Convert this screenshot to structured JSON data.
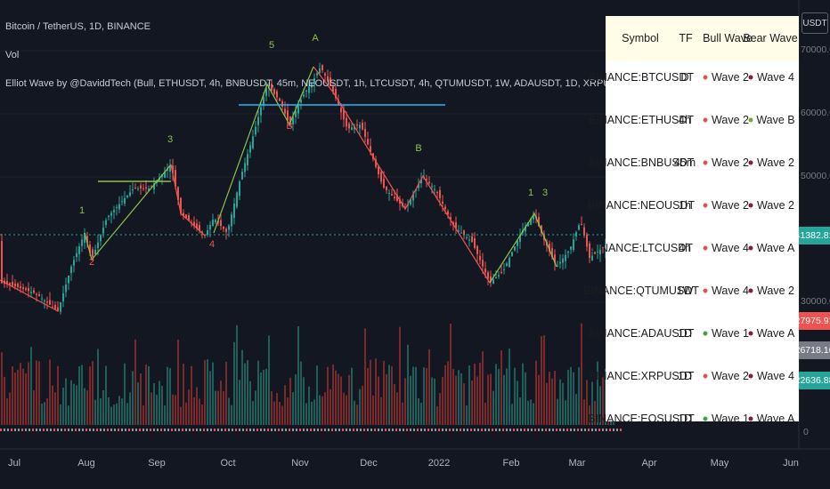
{
  "header": {
    "symbol_line": "Bitcoin / TetherUS, 1D, BINANCE",
    "volume_label": "Vol",
    "indicator_line": "Elliot Wave by @DaviddTech (Bull, ETHUSDT, 4h, BNBUSDT, 45m, NEOUSDT, 1h, LTCUSDT, 4h, QTUMUSDT, 1W, ADAUSDT, 1D, XRPUSDT, 1D, EOSUSDT, 1D, IOTAUSDT, 1D, XLMUSDT, 1D, ONTUSDT, 1D, TRXUSDT, 1D, ETCUSDT, 1D)"
  },
  "price_axis": {
    "currency_button": "USDT",
    "ticks": [
      "70000.00",
      "60000.00",
      "50000.00",
      "30000.00",
      "0"
    ],
    "markers": [
      {
        "value": "41382.81",
        "color": "#26a69a",
        "kind": "last-price"
      },
      {
        "value": "27975.91",
        "color": "#ef5350",
        "kind": "low"
      },
      {
        "value": "26718.16",
        "color": "#787b86",
        "kind": "mid"
      },
      {
        "value": "22636.88",
        "color": "#26a69a",
        "kind": "volume"
      }
    ]
  },
  "time_axis": [
    "Jul",
    "Aug",
    "Sep",
    "Oct",
    "Nov",
    "Dec",
    "2022",
    "Feb",
    "Mar",
    "Apr",
    "May",
    "Jun"
  ],
  "wave_labels": {
    "aug_1": "1",
    "aug_2": "2",
    "sep_3": "3",
    "oct_4": "4",
    "oct_5": "5",
    "nov_A": "A",
    "nov_B": "B",
    "dec_B": "B",
    "feb_1": "1",
    "feb_3": "3"
  },
  "table": {
    "headers": {
      "symbol": "Symbol",
      "tf": "TF",
      "bull": "Bull Wave",
      "bear": "Bear Wave"
    },
    "rows": [
      {
        "symbol": "BINANCE:BTCUSDT",
        "tf": "D",
        "bull_color": "#e05252",
        "bull": "Wave 2",
        "bear_color": "#7b1f3a",
        "bear": "Wave 4"
      },
      {
        "symbol": "BINANCE:ETHUSDT",
        "tf": "4h",
        "bull_color": "#e05252",
        "bull": "Wave 2",
        "bear_color": "#7da52d",
        "bear": "Wave B"
      },
      {
        "symbol": "BINANCE:BNBUSDT",
        "tf": "45m",
        "bull_color": "#e05252",
        "bull": "Wave 2",
        "bear_color": "#7b1f3a",
        "bear": "Wave 2"
      },
      {
        "symbol": "BINANCE:NEOUSDT",
        "tf": "1h",
        "bull_color": "#e05252",
        "bull": "Wave 2",
        "bear_color": "#7b1f3a",
        "bear": "Wave 2"
      },
      {
        "symbol": "BINANCE:LTCUSDT",
        "tf": "4h",
        "bull_color": "#e05252",
        "bull": "Wave 4",
        "bear_color": "#7b1f3a",
        "bear": "Wave A"
      },
      {
        "symbol": "BINANCE:QTUMUSDT",
        "tf": "1W",
        "bull_color": "#e05252",
        "bull": "Wave 4",
        "bear_color": "#7b1f3a",
        "bear": "Wave 2"
      },
      {
        "symbol": "BINANCE:ADAUSDT",
        "tf": "1D",
        "bull_color": "#43a047",
        "bull": "Wave 1",
        "bear_color": "#7b1f3a",
        "bear": "Wave A"
      },
      {
        "symbol": "BINANCE:XRPUSDT",
        "tf": "1D",
        "bull_color": "#e05252",
        "bull": "Wave 2",
        "bear_color": "#7b1f3a",
        "bear": "Wave 4"
      },
      {
        "symbol": "BINANCE:EOSUSDT",
        "tf": "1D",
        "bull_color": "#43a047",
        "bull": "Wave 1",
        "bear_color": "#7b1f3a",
        "bear": "Wave A"
      }
    ]
  },
  "colors": {
    "background": "#131722",
    "up": "#26a69a",
    "down": "#ef5350",
    "bull_line": "#8bc34a",
    "bear_line": "#ef5350",
    "resistance": "#29b6f6"
  }
}
